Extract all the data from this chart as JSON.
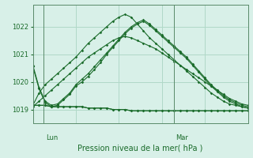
{
  "title": "Pression niveau de la mer( hPa )",
  "background_color": "#d8f0e8",
  "grid_color": "#b0d8c8",
  "line_color": "#1a6b2a",
  "ylim": [
    1018.5,
    1022.8
  ],
  "yticks": [
    1019,
    1020,
    1021,
    1022
  ],
  "day_labels": [
    "Lun",
    "Mar"
  ],
  "day_positions": [
    0.05,
    0.655
  ],
  "series": [
    [
      1020.6,
      1019.8,
      1019.3,
      1019.15,
      1019.2,
      1019.4,
      1019.6,
      1019.9,
      1020.1,
      1020.3,
      1020.55,
      1020.8,
      1021.05,
      1021.3,
      1021.55,
      1021.8,
      1022.0,
      1022.15,
      1022.25,
      1022.1,
      1021.9,
      1021.7,
      1021.5,
      1021.3,
      1021.1,
      1020.9,
      1020.65,
      1020.4,
      1020.15,
      1019.9,
      1019.7,
      1019.5,
      1019.35,
      1019.25,
      1019.15,
      1019.1
    ],
    [
      1020.55,
      1019.75,
      1019.25,
      1019.1,
      1019.15,
      1019.35,
      1019.55,
      1019.85,
      1020.0,
      1020.2,
      1020.45,
      1020.7,
      1021.0,
      1021.25,
      1021.5,
      1021.75,
      1021.95,
      1022.1,
      1022.2,
      1022.05,
      1021.85,
      1021.65,
      1021.45,
      1021.25,
      1021.05,
      1020.85,
      1020.6,
      1020.35,
      1020.1,
      1019.85,
      1019.65,
      1019.45,
      1019.3,
      1019.2,
      1019.1,
      1019.05
    ],
    [
      1019.15,
      1019.15,
      1019.15,
      1019.1,
      1019.1,
      1019.1,
      1019.1,
      1019.1,
      1019.1,
      1019.05,
      1019.05,
      1019.05,
      1019.05,
      1019.0,
      1019.0,
      1019.0,
      1018.95,
      1018.95,
      1018.95,
      1018.95,
      1018.95,
      1018.95,
      1018.95,
      1018.95,
      1018.95,
      1018.95,
      1018.95,
      1018.95,
      1018.95,
      1018.95,
      1018.95,
      1018.95,
      1018.95,
      1018.95,
      1018.95,
      1018.95
    ],
    [
      1019.15,
      1019.15,
      1019.15,
      1019.1,
      1019.1,
      1019.1,
      1019.1,
      1019.1,
      1019.1,
      1019.05,
      1019.05,
      1019.05,
      1019.05,
      1019.0,
      1019.0,
      1019.0,
      1018.95,
      1018.95,
      1018.95,
      1018.95,
      1018.95,
      1018.95,
      1018.95,
      1018.95,
      1018.95,
      1018.95,
      1018.95,
      1018.95,
      1018.95,
      1018.95,
      1018.95,
      1018.95,
      1018.95,
      1018.95,
      1018.95,
      1018.95
    ]
  ],
  "series2": [
    [
      1019.15,
      1019.6,
      1019.9,
      1020.1,
      1020.3,
      1020.5,
      1020.7,
      1020.9,
      1021.15,
      1021.4,
      1021.6,
      1021.8,
      1022.0,
      1022.2,
      1022.35,
      1022.45,
      1022.35,
      1022.1,
      1021.85,
      1021.6,
      1021.4,
      1021.2,
      1021.0,
      1020.8,
      1020.6,
      1020.4,
      1020.2,
      1020.0,
      1019.8,
      1019.6,
      1019.45,
      1019.3,
      1019.2,
      1019.15,
      1019.1,
      1019.05
    ],
    [
      1019.1,
      1019.3,
      1019.5,
      1019.7,
      1019.9,
      1020.1,
      1020.3,
      1020.5,
      1020.7,
      1020.9,
      1021.05,
      1021.2,
      1021.35,
      1021.5,
      1021.6,
      1021.65,
      1021.6,
      1021.5,
      1021.4,
      1021.3,
      1021.2,
      1021.05,
      1020.9,
      1020.75,
      1020.6,
      1020.45,
      1020.3,
      1020.15,
      1020.0,
      1019.85,
      1019.7,
      1019.55,
      1019.4,
      1019.3,
      1019.2,
      1019.15
    ]
  ]
}
